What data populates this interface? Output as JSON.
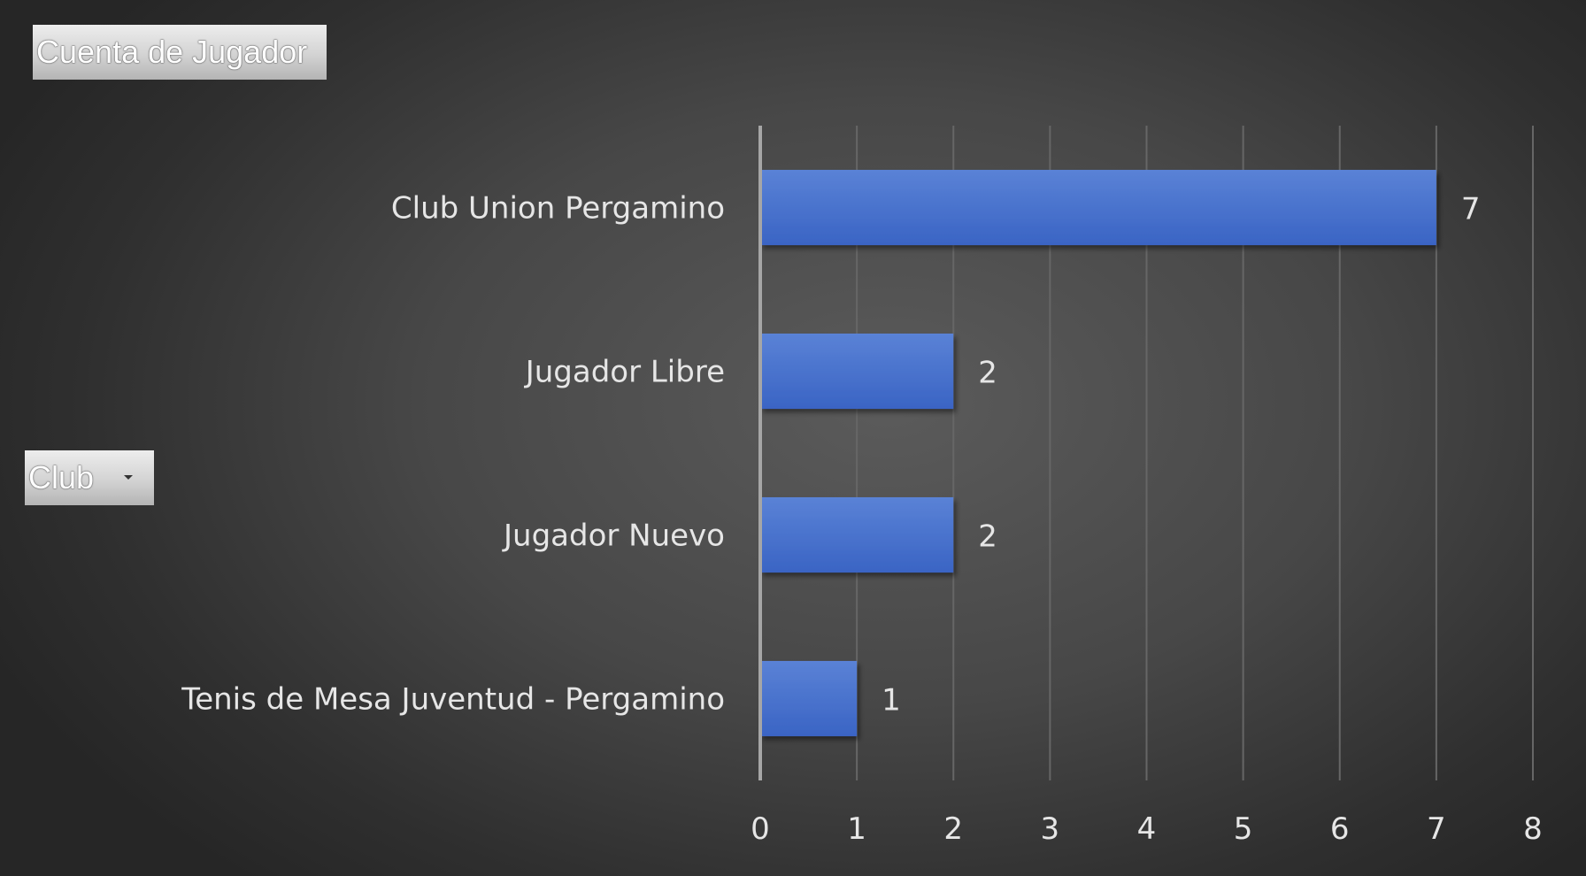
{
  "field_buttons": {
    "value_field": "Cuenta de Jugador",
    "axis_field": "Club"
  },
  "icons": {
    "axis_field_dropdown": "chevron-down-icon"
  },
  "colors": {
    "bar_top": "#5a82d6",
    "bar_bottom": "#3a64c4",
    "gridline": "#666666",
    "axis_line": "#a6a6a6",
    "text": "#e6e6e6"
  },
  "chart_data": {
    "type": "bar",
    "orientation": "horizontal",
    "categories": [
      "Club Union Pergamino",
      "Jugador Libre",
      "Jugador Nuevo",
      "Tenis de Mesa Juventud - Pergamino"
    ],
    "values": [
      7,
      2,
      2,
      1
    ],
    "xlim": [
      0,
      8
    ],
    "xticks": [
      "0",
      "1",
      "2",
      "3",
      "4",
      "5",
      "6",
      "7",
      "8"
    ],
    "grid": "vertical",
    "legend": "none",
    "data_labels": true
  }
}
